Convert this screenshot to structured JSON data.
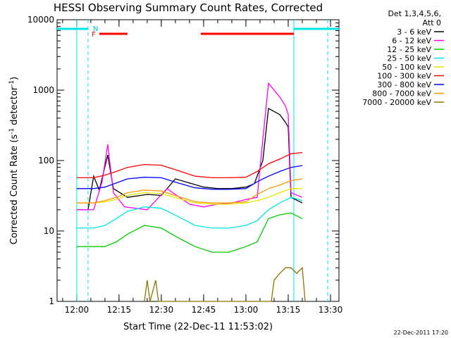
{
  "chart_data": {
    "type": "line",
    "title": "HESSI Observing Summary Count Rates, Corrected",
    "xlabel": "Start Time (22-Dec-11 11:53:02)",
    "ylabel": "Corrected Count Rate (s",
    "ylabel_sup1": "-1",
    "ylabel_mid": " detector",
    "ylabel_sup2": "-1",
    "ylabel_end": ")",
    "yscale": "log",
    "ylim": [
      1,
      10000
    ],
    "xlim": [
      "11:53:02",
      "13:33:00"
    ],
    "x_ticks": [
      "12:00",
      "12:15",
      "12:30",
      "12:45",
      "13:00",
      "13:15",
      "13:30"
    ],
    "y_ticks": [
      "1",
      "10",
      "100",
      "1000",
      "10000"
    ],
    "legend": {
      "header": [
        "Det 1,3,4,5,6,",
        "Att 0"
      ],
      "placement": "right"
    },
    "series": [
      {
        "name": "3 - 6 keV",
        "color": "#000000",
        "points": [
          [
            "12:00",
            20
          ],
          [
            "12:04",
            20
          ],
          [
            "12:06",
            60
          ],
          [
            "12:08",
            38
          ],
          [
            "12:11",
            120
          ],
          [
            "12:13",
            40
          ],
          [
            "12:18",
            30
          ],
          [
            "12:25",
            33
          ],
          [
            "12:30",
            32
          ],
          [
            "12:35",
            55
          ],
          [
            "12:40",
            48
          ],
          [
            "12:45",
            42
          ],
          [
            "12:50",
            40
          ],
          [
            "12:55",
            40
          ],
          [
            "13:00",
            42
          ],
          [
            "13:03",
            47
          ],
          [
            "13:06",
            100
          ],
          [
            "13:08",
            550
          ],
          [
            "13:12",
            450
          ],
          [
            "13:14",
            350
          ],
          [
            "13:15",
            300
          ],
          [
            "13:16",
            30
          ],
          [
            "13:20",
            25
          ]
        ]
      },
      {
        "name": "6 - 12 keV",
        "color": "#ff00ff",
        "points": [
          [
            "12:00",
            20
          ],
          [
            "12:04",
            20
          ],
          [
            "12:06",
            20
          ],
          [
            "12:09",
            50
          ],
          [
            "12:11",
            170
          ],
          [
            "12:13",
            35
          ],
          [
            "12:17",
            22
          ],
          [
            "12:25",
            20
          ],
          [
            "12:32",
            40
          ],
          [
            "12:40",
            24
          ],
          [
            "12:45",
            22
          ],
          [
            "12:50",
            24
          ],
          [
            "12:55",
            25
          ],
          [
            "13:00",
            28
          ],
          [
            "13:04",
            30
          ],
          [
            "13:06",
            200
          ],
          [
            "13:08",
            1250
          ],
          [
            "13:12",
            800
          ],
          [
            "13:14",
            600
          ],
          [
            "13:15",
            450
          ],
          [
            "13:16",
            35
          ],
          [
            "13:20",
            30
          ]
        ]
      },
      {
        "name": "12 - 25 keV",
        "color": "#00cc00",
        "points": [
          [
            "12:00",
            6
          ],
          [
            "12:06",
            6
          ],
          [
            "12:10",
            6
          ],
          [
            "12:14",
            7
          ],
          [
            "12:18",
            9
          ],
          [
            "12:24",
            12
          ],
          [
            "12:30",
            11
          ],
          [
            "12:36",
            8
          ],
          [
            "12:42",
            6
          ],
          [
            "12:48",
            5
          ],
          [
            "12:54",
            5
          ],
          [
            "13:00",
            6
          ],
          [
            "13:04",
            7
          ],
          [
            "13:08",
            15
          ],
          [
            "13:12",
            17
          ],
          [
            "13:16",
            18
          ],
          [
            "13:20",
            15
          ]
        ]
      },
      {
        "name": "25 - 50 keV",
        "color": "#00e5e5",
        "points": [
          [
            "12:00",
            11
          ],
          [
            "12:06",
            11
          ],
          [
            "12:10",
            12
          ],
          [
            "12:14",
            15
          ],
          [
            "12:18",
            19
          ],
          [
            "12:24",
            22
          ],
          [
            "12:30",
            21
          ],
          [
            "12:36",
            16
          ],
          [
            "12:42",
            12
          ],
          [
            "12:48",
            11
          ],
          [
            "12:54",
            11
          ],
          [
            "13:00",
            12
          ],
          [
            "13:04",
            14
          ],
          [
            "13:08",
            20
          ],
          [
            "13:12",
            25
          ],
          [
            "13:16",
            30
          ],
          [
            "13:20",
            27
          ]
        ]
      },
      {
        "name": "50 - 100 keV",
        "color": "#e5e500",
        "points": [
          [
            "12:00",
            25
          ],
          [
            "12:06",
            25
          ],
          [
            "12:10",
            26
          ],
          [
            "12:14",
            28
          ],
          [
            "12:18",
            32
          ],
          [
            "12:24",
            35
          ],
          [
            "12:30",
            34
          ],
          [
            "12:36",
            29
          ],
          [
            "12:42",
            25
          ],
          [
            "12:48",
            24
          ],
          [
            "12:54",
            24
          ],
          [
            "13:00",
            25
          ],
          [
            "13:04",
            27
          ],
          [
            "13:08",
            30
          ],
          [
            "13:12",
            35
          ],
          [
            "13:16",
            40
          ],
          [
            "13:20",
            40
          ]
        ]
      },
      {
        "name": "100 - 300 keV",
        "color": "#ff0000",
        "points": [
          [
            "12:00",
            57
          ],
          [
            "12:06",
            57
          ],
          [
            "12:10",
            62
          ],
          [
            "12:14",
            70
          ],
          [
            "12:18",
            80
          ],
          [
            "12:24",
            88
          ],
          [
            "12:30",
            86
          ],
          [
            "12:36",
            72
          ],
          [
            "12:42",
            60
          ],
          [
            "12:48",
            57
          ],
          [
            "12:54",
            57
          ],
          [
            "13:00",
            58
          ],
          [
            "13:04",
            70
          ],
          [
            "13:08",
            90
          ],
          [
            "13:12",
            105
          ],
          [
            "13:16",
            125
          ],
          [
            "13:20",
            130
          ]
        ]
      },
      {
        "name": "300 - 800 keV",
        "color": "#0000ff",
        "points": [
          [
            "12:00",
            40
          ],
          [
            "12:06",
            40
          ],
          [
            "12:10",
            42
          ],
          [
            "12:14",
            48
          ],
          [
            "12:18",
            55
          ],
          [
            "12:24",
            58
          ],
          [
            "12:30",
            57
          ],
          [
            "12:36",
            48
          ],
          [
            "12:42",
            41
          ],
          [
            "12:48",
            39
          ],
          [
            "12:54",
            39
          ],
          [
            "13:00",
            40
          ],
          [
            "13:04",
            50
          ],
          [
            "13:08",
            60
          ],
          [
            "13:12",
            70
          ],
          [
            "13:16",
            80
          ],
          [
            "13:20",
            85
          ]
        ]
      },
      {
        "name": "800 - 7000 keV",
        "color": "#ff9900",
        "points": [
          [
            "12:00",
            25
          ],
          [
            "12:06",
            25
          ],
          [
            "12:10",
            27
          ],
          [
            "12:14",
            30
          ],
          [
            "12:18",
            35
          ],
          [
            "12:24",
            38
          ],
          [
            "12:30",
            37
          ],
          [
            "12:36",
            31
          ],
          [
            "12:42",
            26
          ],
          [
            "12:48",
            25
          ],
          [
            "12:54",
            25
          ],
          [
            "13:00",
            26
          ],
          [
            "13:04",
            33
          ],
          [
            "13:08",
            40
          ],
          [
            "13:12",
            45
          ],
          [
            "13:16",
            52
          ],
          [
            "13:20",
            55
          ]
        ]
      },
      {
        "name": "7000 - 20000 keV",
        "color": "#8b7500",
        "points": [
          [
            "12:24",
            1
          ],
          [
            "12:25",
            2
          ],
          [
            "12:26",
            1
          ],
          [
            "12:28",
            2
          ],
          [
            "12:29",
            1
          ],
          [
            "13:09",
            1
          ],
          [
            "13:10",
            2
          ],
          [
            "13:12",
            2.5
          ],
          [
            "13:14",
            3
          ],
          [
            "13:16",
            3
          ],
          [
            "13:18",
            2.5
          ],
          [
            "13:20",
            3
          ],
          [
            "13:21",
            1
          ]
        ]
      }
    ],
    "annotations": {
      "flag_f": "F",
      "flag_n": "N",
      "flare_bars": [
        [
          "12:08",
          "12:18"
        ],
        [
          "12:44",
          "13:17"
        ]
      ],
      "night_bars": [
        [
          "11:53",
          "12:04"
        ],
        [
          "13:17",
          "13:33"
        ]
      ],
      "cyan_solid_lines": [
        "12:00",
        "13:17"
      ],
      "cyan_dashed_lines": [
        "12:04",
        "13:29"
      ]
    },
    "footer_date": "22-Dec-2011 17:20"
  }
}
